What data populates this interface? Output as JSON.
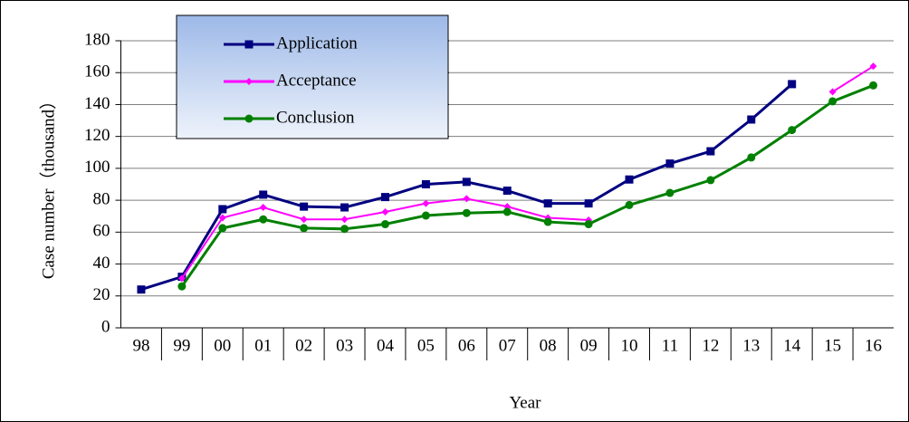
{
  "chart_data": {
    "type": "line",
    "xlabel": "Year",
    "ylabel": "Case number（thousand）",
    "categories": [
      "98",
      "99",
      "00",
      "01",
      "02",
      "03",
      "04",
      "05",
      "06",
      "07",
      "08",
      "09",
      "10",
      "11",
      "12",
      "13",
      "14",
      "15",
      "16"
    ],
    "series": [
      {
        "name": "Application",
        "color": "#000080",
        "marker": "square",
        "values": [
          24,
          32,
          74.4,
          83.5,
          76,
          75.5,
          82,
          90,
          91.5,
          86,
          78,
          78,
          93,
          103,
          110.7,
          130.6,
          152.8,
          null,
          null
        ]
      },
      {
        "name": "Acceptance",
        "color": "#ff00ff",
        "marker": "diamond",
        "values": [
          null,
          31,
          69,
          75.5,
          68,
          68,
          72.7,
          78,
          81,
          76,
          69,
          67.6,
          null,
          null,
          null,
          null,
          null,
          148,
          164
        ]
      },
      {
        "name": "Conclusion",
        "color": "#008000",
        "marker": "circle",
        "values": [
          null,
          26,
          62.5,
          68,
          62.5,
          62,
          65,
          70.4,
          72,
          72.7,
          66.4,
          65,
          77,
          84.6,
          92.6,
          106.8,
          124,
          142,
          152
        ]
      }
    ],
    "ylim": [
      0,
      180
    ],
    "yticks": [
      0,
      20,
      40,
      60,
      80,
      100,
      120,
      140,
      160,
      180
    ],
    "grid": true,
    "legend": "upper left"
  }
}
